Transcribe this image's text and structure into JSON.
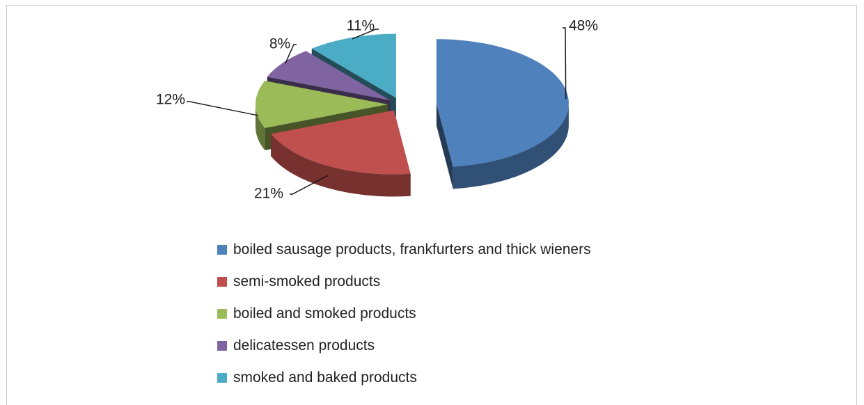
{
  "chart_data": {
    "type": "pie",
    "style": "3d-exploded",
    "legend_position": "bottom",
    "slices": [
      {
        "category": "boiled sausage products, frankfurters and thick wieners",
        "value": 48,
        "label": "48%",
        "color": "#4F81BD"
      },
      {
        "category": "semi-smoked products",
        "value": 21,
        "label": "21%",
        "color": "#C0504D"
      },
      {
        "category": "boiled and smoked products",
        "value": 12,
        "label": "12%",
        "color": "#9BBB59"
      },
      {
        "category": "delicatessen products",
        "value": 8,
        "label": "8%",
        "color": "#8064A2"
      },
      {
        "category": "smoked and baked products",
        "value": 11,
        "label": "11%",
        "color": "#4BACC6"
      }
    ]
  }
}
